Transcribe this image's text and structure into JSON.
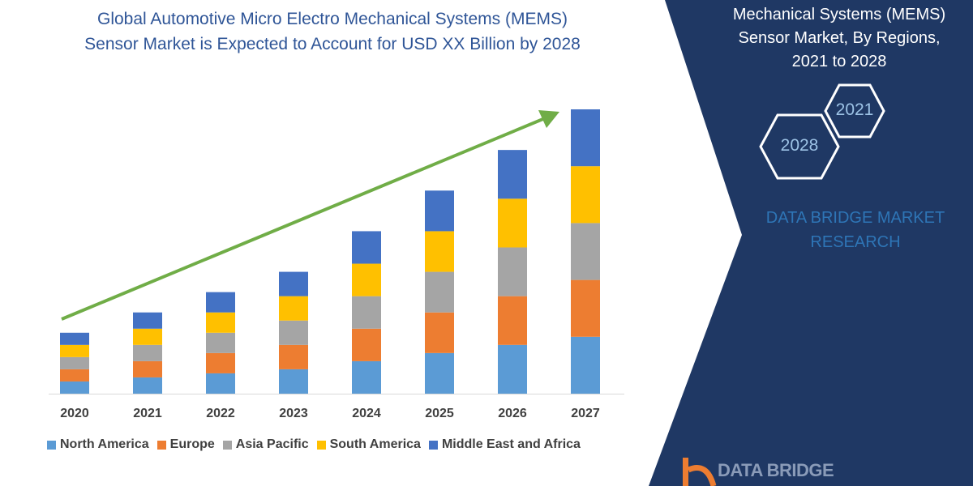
{
  "header": {
    "title_line1": "Global Automotive Micro Electro Mechanical Systems (MEMS)",
    "title_line2": "Sensor Market is Expected to Account for USD XX Billion by 2028"
  },
  "side_panel": {
    "title_line1": "Mechanical Systems (MEMS)",
    "title_line2": "Sensor Market, By Regions,",
    "title_line3": "2021 to 2028",
    "hex_2021": "2021",
    "hex_2028": "2028",
    "brand_line1": "DATA BRIDGE MARKET",
    "brand_line2": "RESEARCH",
    "logo_text": "DATA BRIDGE",
    "panel_color": "#1f3864"
  },
  "chart_data": {
    "type": "bar",
    "stacked": true,
    "categories": [
      "2020",
      "2021",
      "2022",
      "2023",
      "2024",
      "2025",
      "2026",
      "2027"
    ],
    "series": [
      {
        "name": "North America",
        "color": "#5b9bd5",
        "values": [
          15,
          20,
          25,
          30,
          40,
          50,
          60,
          70
        ]
      },
      {
        "name": "Europe",
        "color": "#ed7d31",
        "values": [
          15,
          20,
          25,
          30,
          40,
          50,
          60,
          70
        ]
      },
      {
        "name": "Asia Pacific",
        "color": "#a5a5a5",
        "values": [
          15,
          20,
          25,
          30,
          40,
          50,
          60,
          70
        ]
      },
      {
        "name": "South America",
        "color": "#ffc000",
        "values": [
          15,
          20,
          25,
          30,
          40,
          50,
          60,
          70
        ]
      },
      {
        "name": "Middle East and Africa",
        "color": "#4472c4",
        "values": [
          15,
          20,
          25,
          30,
          40,
          50,
          60,
          70
        ]
      }
    ],
    "ylim": [
      0,
      350
    ],
    "y_axis_shown": false,
    "grid": false,
    "legend_position": "bottom",
    "trend_arrow_color": "#70ad47"
  }
}
